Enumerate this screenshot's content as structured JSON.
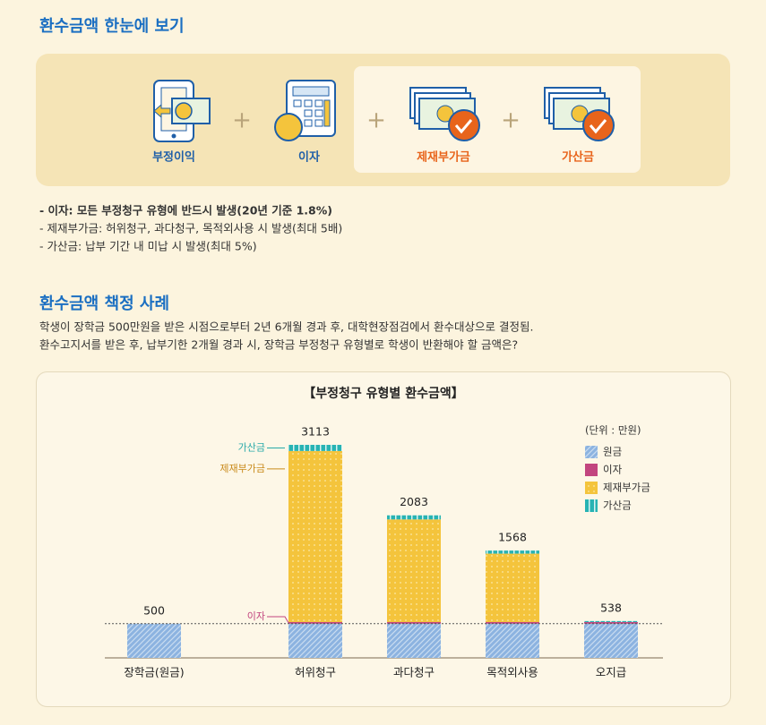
{
  "header": {
    "title": "환수금액 한눈에 보기"
  },
  "formula": [
    "부정이익",
    "이자",
    "제재부가금",
    "가산금"
  ],
  "notes": [
    "- 이자: 모든 부정청구 유형에 반드시 발생(20년 기준 1.8%)",
    "- 제재부가금: 허위청구, 과다청구, 목적외사용 시 발생(최대 5배)",
    "- 가산금: 납부 기간 내 미납 시 발생(최대 5%)"
  ],
  "case": {
    "title": "환수금액 책정 사례",
    "text": [
      "학생이 장학금 500만원을 받은 시점으로부터 2년 6개월 경과 후, 대학현장점검에서 환수대상으로 결정됨.",
      "환수고지서를 받은 후, 납부기한 2개월 경과 시, 장학금 부정청구 유형별로 학생이 반환해야 할 금액은?"
    ]
  },
  "chart_data": {
    "type": "bar",
    "stacked": true,
    "title": "【부정청구 유형별 환수금액】",
    "unit": "(단위 : 만원)",
    "categories": [
      "장학금(원금)",
      "허위청구",
      "과다청구",
      "목적외사용",
      "오지급"
    ],
    "series": [
      {
        "name": "원금",
        "color": "#8cb3e0",
        "pattern": "diagonal",
        "values": [
          500,
          500,
          500,
          500,
          500
        ]
      },
      {
        "name": "이자",
        "color": "#c2457f",
        "pattern": "solid",
        "values": [
          null,
          23,
          23,
          23,
          23
        ]
      },
      {
        "name": "제재부가금",
        "color": "#f4c43c",
        "pattern": "dots",
        "values": [
          null,
          2500,
          1500,
          1000,
          null
        ]
      },
      {
        "name": "가산금",
        "color": "#27b3b3",
        "pattern": "vertical",
        "values": [
          null,
          90,
          60,
          45,
          15
        ]
      }
    ],
    "totals": [
      500,
      3113,
      2083,
      1568,
      538
    ],
    "annotations": [
      {
        "text": "가산금",
        "series": 3,
        "color": "#27a9a9"
      },
      {
        "text": "제재부가금",
        "series": 2,
        "color": "#c98a1a"
      },
      {
        "text": "이자",
        "series": 1,
        "color": "#c2457f"
      }
    ]
  }
}
